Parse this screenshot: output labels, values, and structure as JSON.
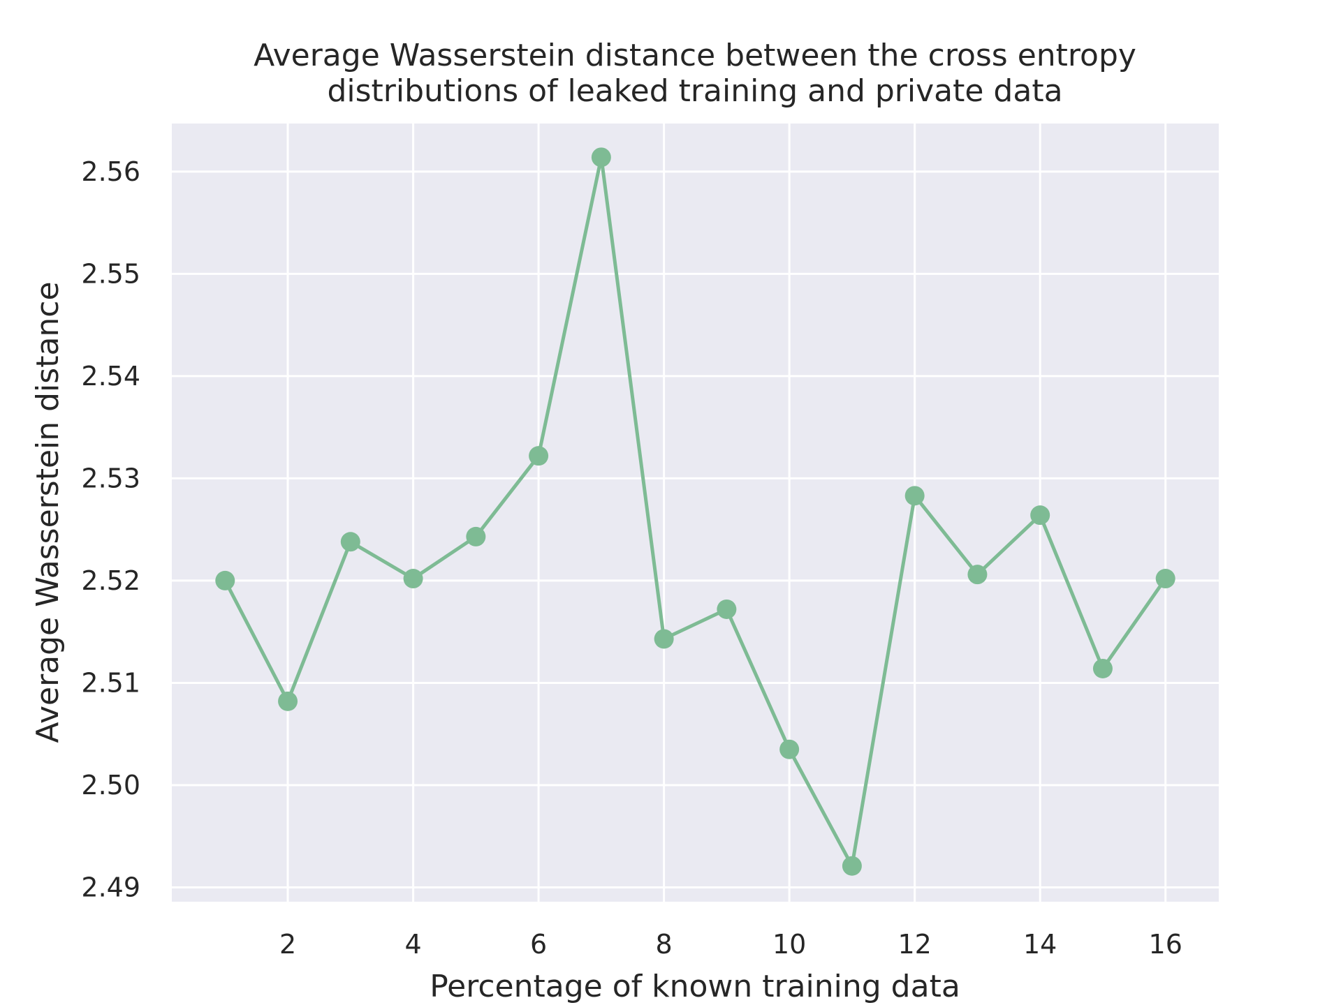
{
  "chart_data": {
    "type": "line",
    "title_lines": [
      "Average Wasserstein distance between the cross entropy",
      "distributions of leaked training and private data"
    ],
    "xlabel": "Percentage of known training data",
    "ylabel": "Average Wasserstein distance",
    "x": [
      1,
      2,
      3,
      4,
      5,
      6,
      7,
      8,
      9,
      10,
      11,
      12,
      13,
      14,
      15,
      16
    ],
    "series": [
      {
        "values": [
          2.52,
          2.5082,
          2.5238,
          2.5202,
          2.5243,
          2.5322,
          2.5614,
          2.5143,
          2.5172,
          2.5035,
          2.4921,
          2.5283,
          2.5206,
          2.5264,
          2.5114,
          2.5202
        ],
        "color": "#7ebb94",
        "marker": "circle"
      }
    ],
    "xlim": [
      0.15,
      16.85
    ],
    "ylim": [
      2.4886,
      2.5647
    ],
    "xticks": [
      2,
      4,
      6,
      8,
      10,
      12,
      14,
      16
    ],
    "xtick_labels": [
      "2",
      "4",
      "6",
      "8",
      "10",
      "12",
      "14",
      "16"
    ],
    "yticks": [
      2.49,
      2.5,
      2.51,
      2.52,
      2.53,
      2.54,
      2.55,
      2.56
    ],
    "ytick_labels": [
      "2.49",
      "2.50",
      "2.51",
      "2.52",
      "2.53",
      "2.54",
      "2.55",
      "2.56"
    ],
    "grid": true,
    "legend": "none",
    "colors": {
      "plot_background": "#eaeaf2",
      "grid": "#ffffff",
      "line": "#7ebb94",
      "text": "#262626"
    }
  }
}
